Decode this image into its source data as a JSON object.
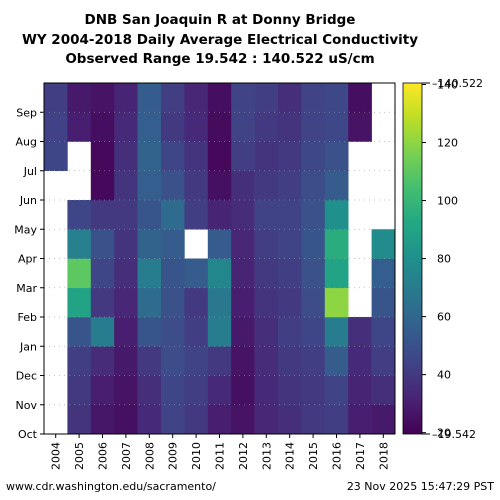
{
  "title_lines": [
    "DNB San Joaquin R at Donny Bridge",
    "WY 2004-2018 Daily Average Electrical Conductivity",
    "Observed Range 19.542 : 140.522 uS/cm"
  ],
  "footer": {
    "source": "www.cdr.washington.edu/sacramento/",
    "timestamp": "23 Nov 2025 15:47:29 PST"
  },
  "chart_data": {
    "type": "heatmap",
    "x_categories": [
      "2004",
      "2005",
      "2006",
      "2007",
      "2008",
      "2009",
      "2010",
      "2011",
      "2012",
      "2013",
      "2014",
      "2015",
      "2016",
      "2017",
      "2018"
    ],
    "y_categories": [
      "Oct",
      "Nov",
      "Dec",
      "Jan",
      "Feb",
      "Mar",
      "Apr",
      "May",
      "Jun",
      "Jul",
      "Aug",
      "Sep"
    ],
    "colorbar": {
      "min": 19.542,
      "max": 140.522,
      "ticks": [
        20,
        40,
        60,
        80,
        100,
        120,
        140
      ],
      "min_label": "19.542",
      "max_label": "140.522",
      "colormap": "viridis"
    },
    "monthly_values": {
      "2004": [
        null,
        null,
        null,
        null,
        null,
        null,
        null,
        null,
        null,
        45,
        43,
        42
      ],
      "2005": [
        38,
        40,
        42,
        52,
        90,
        110,
        72,
        45,
        null,
        null,
        30,
        28
      ],
      "2006": [
        27,
        30,
        35,
        70,
        40,
        45,
        50,
        40,
        22,
        22,
        24,
        26
      ],
      "2007": [
        25,
        26,
        28,
        30,
        33,
        36,
        38,
        40,
        38,
        36,
        34,
        32
      ],
      "2008": [
        34,
        36,
        40,
        52,
        62,
        70,
        58,
        52,
        56,
        58,
        56,
        55
      ],
      "2009": [
        44,
        45,
        48,
        48,
        50,
        52,
        55,
        62,
        50,
        45,
        40,
        42
      ],
      "2010": [
        40,
        42,
        44,
        42,
        40,
        55,
        null,
        42,
        40,
        38,
        34,
        33
      ],
      "2011": [
        30,
        34,
        40,
        70,
        68,
        75,
        55,
        32,
        25,
        22,
        23,
        24
      ],
      "2012": [
        26,
        25,
        26,
        28,
        30,
        32,
        33,
        35,
        36,
        42,
        44,
        44
      ],
      "2013": [
        33,
        34,
        35,
        36,
        38,
        40,
        42,
        44,
        40,
        38,
        40,
        42
      ],
      "2014": [
        36,
        38,
        40,
        42,
        40,
        42,
        44,
        44,
        42,
        40,
        38,
        36
      ],
      "2015": [
        40,
        40,
        42,
        45,
        48,
        50,
        52,
        50,
        48,
        46,
        44,
        44
      ],
      "2016": [
        42,
        44,
        55,
        70,
        120,
        90,
        95,
        80,
        55,
        50,
        46,
        46
      ],
      "2017": [
        30,
        32,
        34,
        36,
        null,
        null,
        null,
        null,
        null,
        null,
        26,
        24
      ],
      "2018": [
        28,
        36,
        42,
        45,
        52,
        56,
        78,
        null,
        null,
        null,
        null,
        null
      ]
    }
  }
}
